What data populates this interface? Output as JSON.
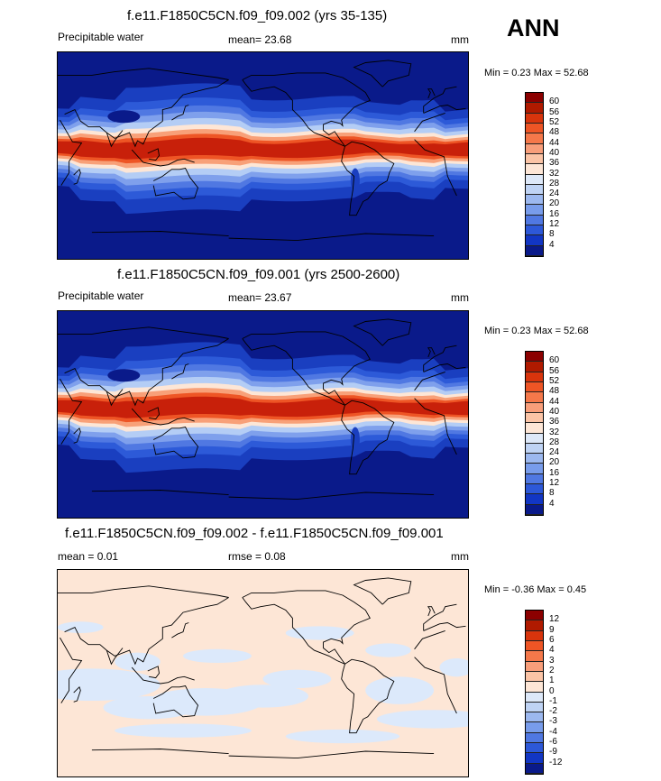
{
  "season": "ANN",
  "panels": [
    {
      "title": "f.e11.F1850C5CN.f09_f09.002 (yrs 35-135)",
      "variable": "Precipitable water",
      "mean_text": "mean=  23.68",
      "units": "mm",
      "minmax_text": "Min =   0.23 Max =  52.68",
      "colorbar_labels": [
        "60",
        "56",
        "52",
        "48",
        "44",
        "40",
        "36",
        "32",
        "28",
        "24",
        "20",
        "16",
        "12",
        "8",
        "4"
      ],
      "colorbar_colors": [
        "#8b0000",
        "#b01a00",
        "#d8340c",
        "#ee5525",
        "#f5784a",
        "#f89e7a",
        "#fbc4a6",
        "#fde6d6",
        "#dde8f8",
        "#bfd3f4",
        "#9cb8ef",
        "#789ceb",
        "#5078e2",
        "#2d58d8",
        "#1236c4",
        "#0a1a8a"
      ],
      "layers": [
        "#0a1a8a",
        "#1a3fc0",
        "#2d5ad8",
        "#5078e2",
        "#7fa0ec",
        "#b4cdf5",
        "#fde6d6",
        "#f8a078",
        "#ee5525",
        "#c8200a"
      ]
    },
    {
      "title": "f.e11.F1850C5CN.f09_f09.001 (yrs 2500-2600)",
      "variable": "Precipitable water",
      "mean_text": "mean=  23.67",
      "units": "mm",
      "minmax_text": "Min =   0.23 Max =  52.68",
      "colorbar_labels": [
        "60",
        "56",
        "52",
        "48",
        "44",
        "40",
        "36",
        "32",
        "28",
        "24",
        "20",
        "16",
        "12",
        "8",
        "4"
      ],
      "colorbar_colors": [
        "#8b0000",
        "#b01a00",
        "#d8340c",
        "#ee5525",
        "#f5784a",
        "#f89e7a",
        "#fbc4a6",
        "#fde6d6",
        "#dde8f8",
        "#bfd3f4",
        "#9cb8ef",
        "#789ceb",
        "#5078e2",
        "#2d58d8",
        "#1236c4",
        "#0a1a8a"
      ],
      "layers": [
        "#0a1a8a",
        "#1a3fc0",
        "#2d5ad8",
        "#5078e2",
        "#7fa0ec",
        "#b4cdf5",
        "#fde6d6",
        "#f8a078",
        "#ee5525",
        "#c8200a"
      ]
    },
    {
      "title": "f.e11.F1850C5CN.f09_f09.002 - f.e11.F1850C5CN.f09_f09.001",
      "variable": "mean =   0.01",
      "mean_text": "rmse =   0.08",
      "units": "mm",
      "minmax_text": "Min =  -0.36 Max =   0.45",
      "colorbar_labels": [
        "12",
        "9",
        "6",
        "4",
        "3",
        "2",
        "1",
        "0",
        "-1",
        "-2",
        "-3",
        "-4",
        "-6",
        "-9",
        "-12"
      ],
      "colorbar_colors": [
        "#8b0000",
        "#b01a00",
        "#d8340c",
        "#ee5525",
        "#f5784a",
        "#f89e7a",
        "#fbc4a6",
        "#fde6d6",
        "#dde8f8",
        "#bfd3f4",
        "#9cb8ef",
        "#789ceb",
        "#5078e2",
        "#2d58d8",
        "#1236c4",
        "#0a1a8a"
      ],
      "layers": [
        "#fde6d6",
        "#dce9fb"
      ]
    }
  ]
}
